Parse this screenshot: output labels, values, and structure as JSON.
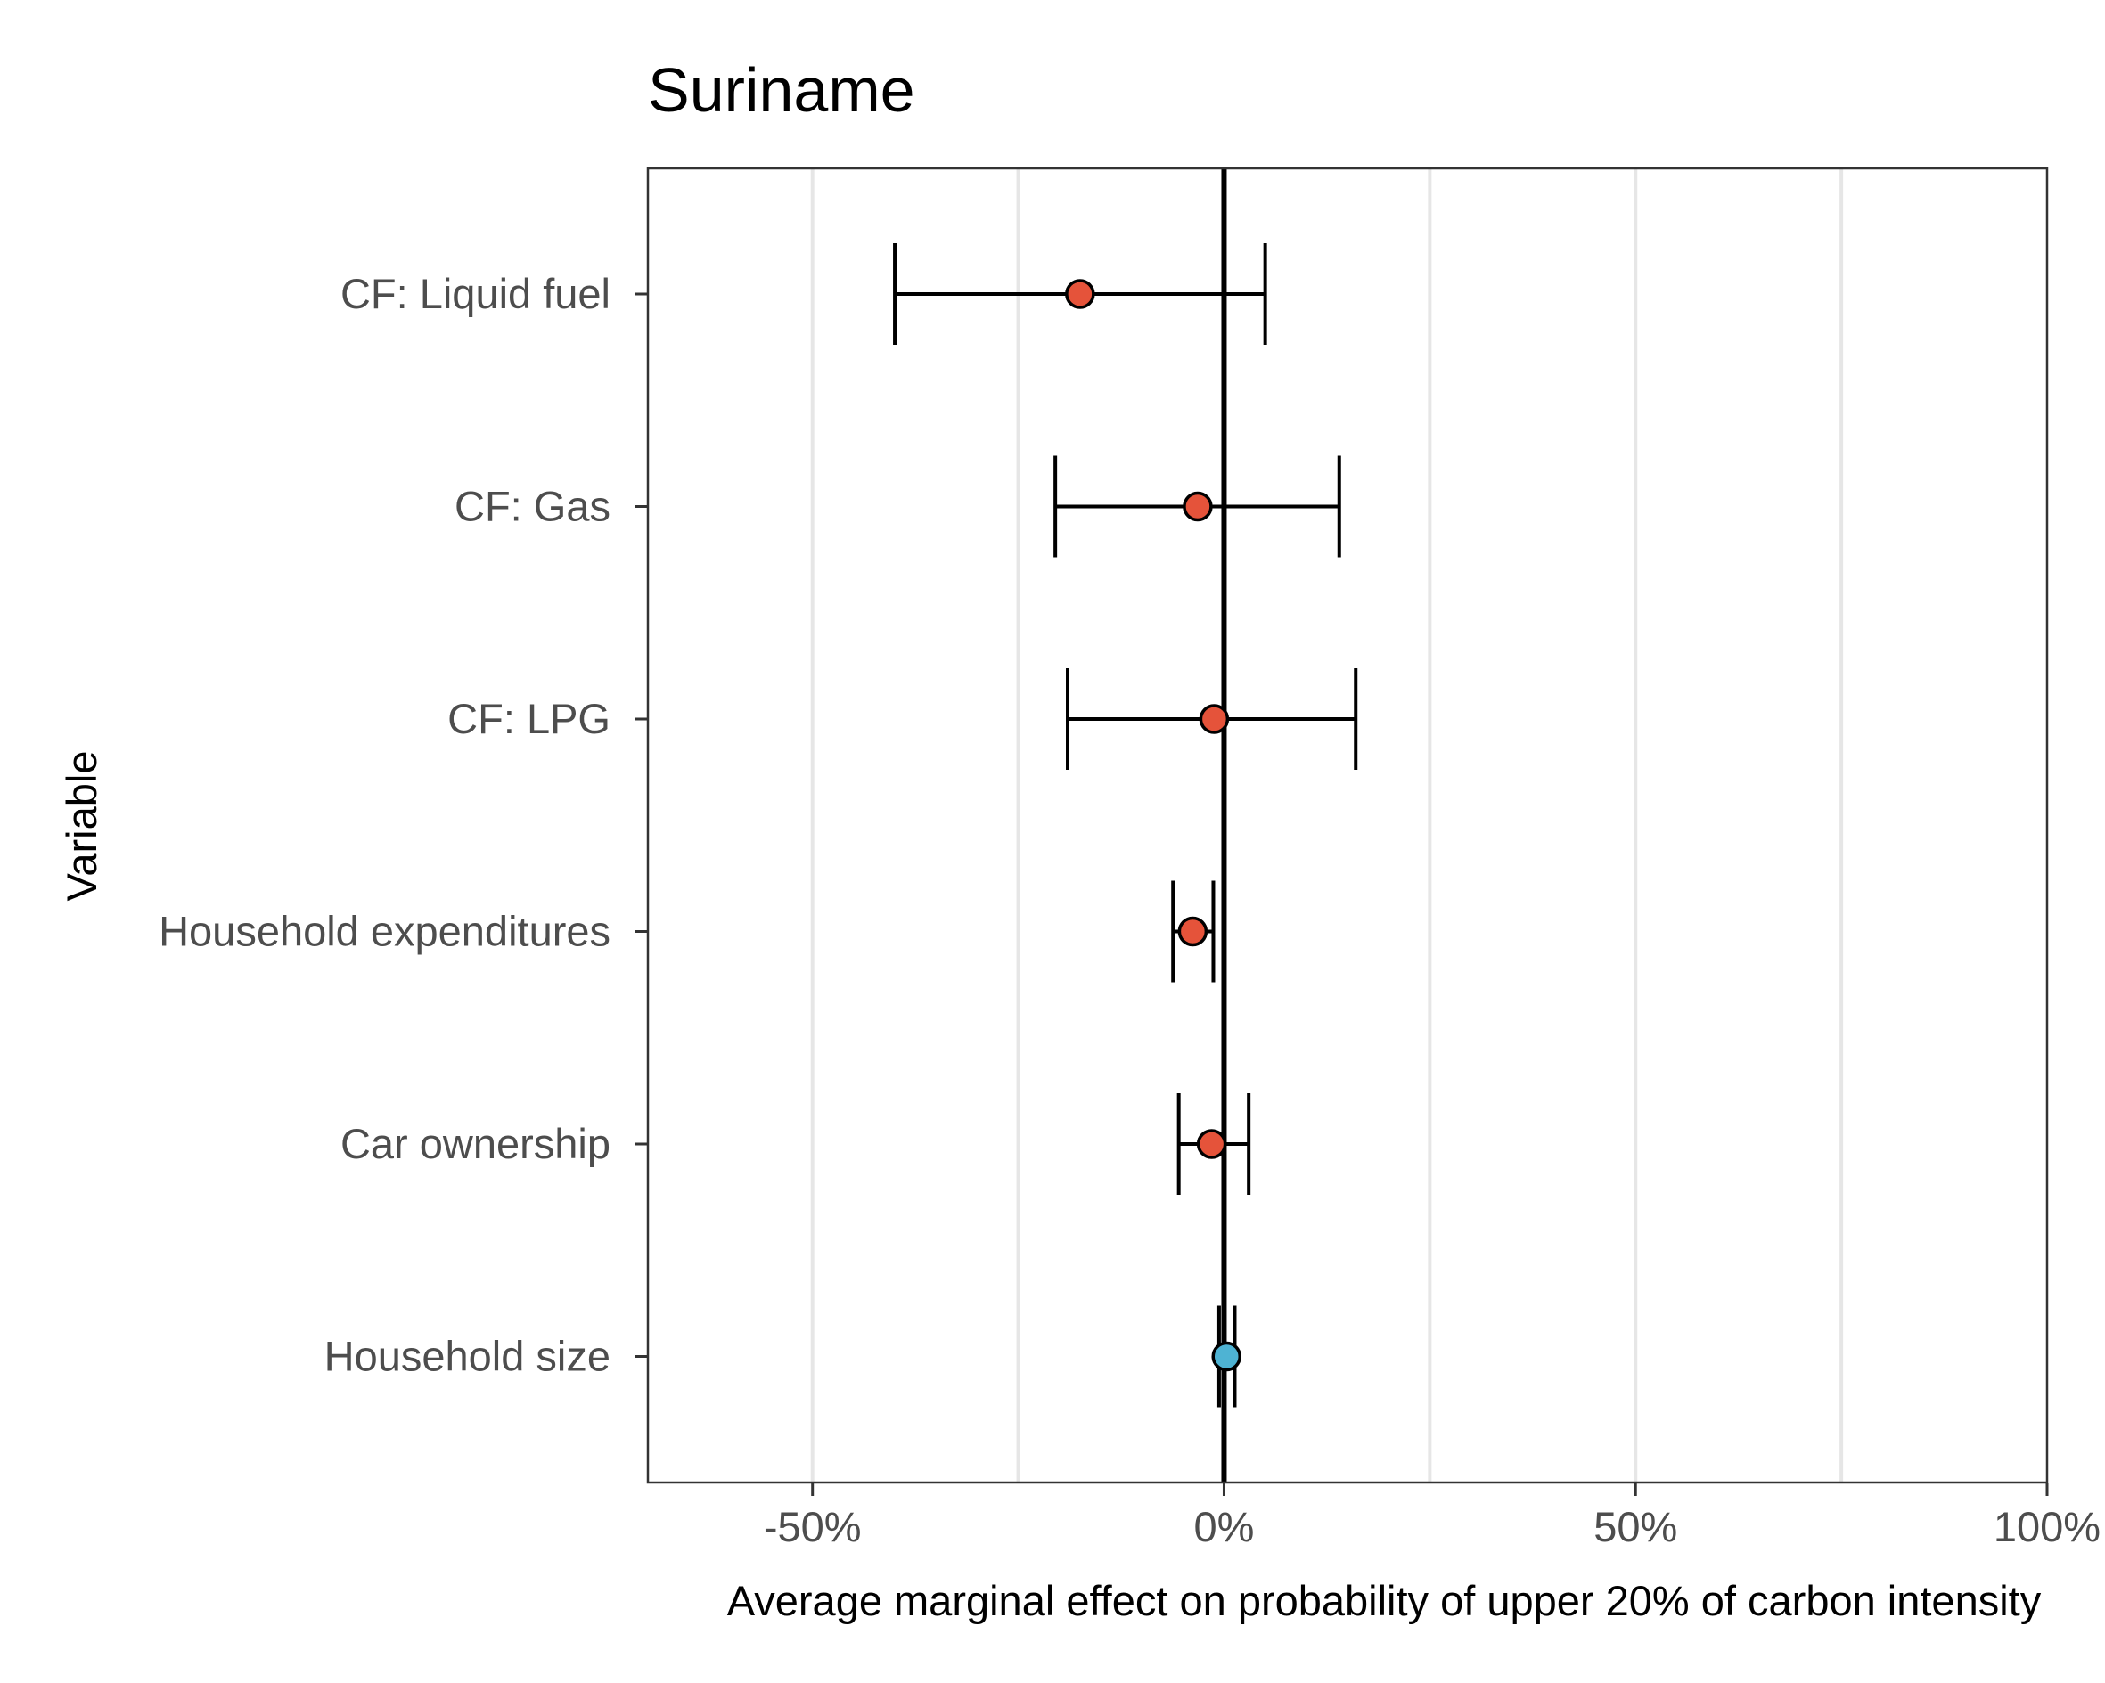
{
  "chart_data": {
    "type": "scatter",
    "subtype": "coefficient-plot-with-error-bars",
    "title": "Suriname",
    "xlabel": "Average marginal effect on probability of upper 20% of carbon intensity",
    "ylabel": "Variable",
    "xlim": [
      -0.7,
      1.0
    ],
    "x_ticks": [
      {
        "value": -0.5,
        "label": "-50%"
      },
      {
        "value": 0.0,
        "label": "0%"
      },
      {
        "value": 0.5,
        "label": "50%"
      },
      {
        "value": 1.0,
        "label": "100%"
      }
    ],
    "x_minor_gridlines": [
      -0.25,
      0.25,
      0.75
    ],
    "grid": "vertical only",
    "reference_line": 0.0,
    "legend": "none",
    "colors": {
      "negative": "#e5533a",
      "positive": "#4eb3d3",
      "error_bar": "#000000",
      "gridline": "#e6e6e6"
    },
    "variables": [
      {
        "label": "CF: Liquid fuel",
        "estimate": -0.175,
        "ci_low": -0.4,
        "ci_high": 0.05,
        "color_key": "negative"
      },
      {
        "label": "CF: Gas",
        "estimate": -0.032,
        "ci_low": -0.205,
        "ci_high": 0.14,
        "color_key": "negative"
      },
      {
        "label": "CF: LPG",
        "estimate": -0.012,
        "ci_low": -0.19,
        "ci_high": 0.16,
        "color_key": "negative"
      },
      {
        "label": "Household expenditures",
        "estimate": -0.038,
        "ci_low": -0.062,
        "ci_high": -0.013,
        "color_key": "negative"
      },
      {
        "label": "Car ownership",
        "estimate": -0.015,
        "ci_low": -0.055,
        "ci_high": 0.03,
        "color_key": "negative"
      },
      {
        "label": "Household size",
        "estimate": 0.003,
        "ci_low": -0.006,
        "ci_high": 0.013,
        "color_key": "positive"
      }
    ]
  }
}
